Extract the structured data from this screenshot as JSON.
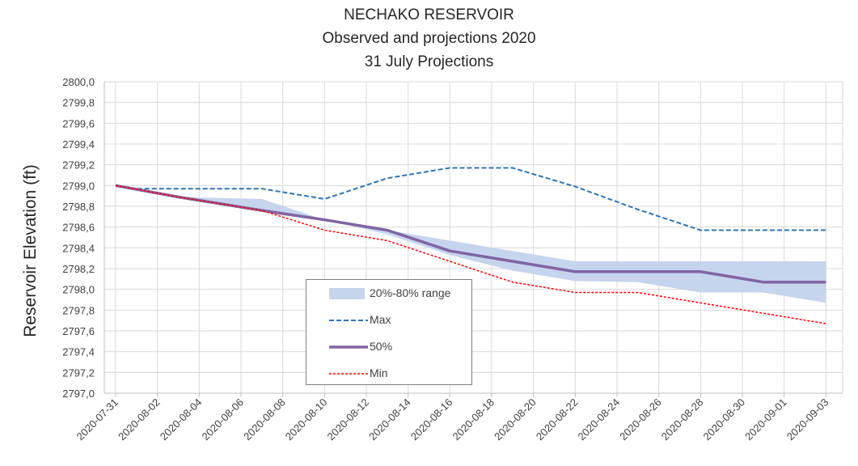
{
  "chart_data": {
    "type": "line",
    "title": [
      "NECHAKO RESERVOIR",
      "Observed and projections 2020",
      "31 July Projections"
    ],
    "ylabel": "Reservoir Elevation (ft)",
    "xlabel": "",
    "ylim": [
      2797.0,
      2800.0
    ],
    "y_ticks": [
      "2797,0",
      "2797,2",
      "2797,4",
      "2797,6",
      "2797,8",
      "2798,0",
      "2798,2",
      "2798,4",
      "2798,6",
      "2798,8",
      "2799,0",
      "2799,2",
      "2799,4",
      "2799,6",
      "2799,8",
      "2800,0"
    ],
    "x_ticks": [
      "2020-07-31",
      "2020-08-02",
      "2020-08-04",
      "2020-08-06",
      "2020-08-08",
      "2020-08-10",
      "2020-08-12",
      "2020-08-14",
      "2020-08-16",
      "2020-08-18",
      "2020-08-20",
      "2020-08-22",
      "2020-08-24",
      "2020-08-26",
      "2020-08-28",
      "2020-08-30",
      "2020-09-01",
      "2020-09-03"
    ],
    "grid": true,
    "legend_position": "center",
    "band": {
      "name": "20%-80% range",
      "color": "#c6d4ed",
      "points": [
        {
          "x": "2020-07-31",
          "low": 2799.0,
          "high": 2799.0
        },
        {
          "x": "2020-08-03",
          "low": 2798.89,
          "high": 2798.89
        },
        {
          "x": "2020-08-07",
          "low": 2798.76,
          "high": 2798.87
        },
        {
          "x": "2020-08-10",
          "low": 2798.67,
          "high": 2798.67
        },
        {
          "x": "2020-08-13",
          "low": 2798.53,
          "high": 2798.57
        },
        {
          "x": "2020-08-16",
          "low": 2798.33,
          "high": 2798.47
        },
        {
          "x": "2020-08-19",
          "low": 2798.18,
          "high": 2798.37
        },
        {
          "x": "2020-08-22",
          "low": 2798.08,
          "high": 2798.27
        },
        {
          "x": "2020-08-25",
          "low": 2798.07,
          "high": 2798.27
        },
        {
          "x": "2020-08-28",
          "low": 2797.97,
          "high": 2798.27
        },
        {
          "x": "2020-08-31",
          "low": 2797.97,
          "high": 2798.27
        },
        {
          "x": "2020-09-03",
          "low": 2797.87,
          "high": 2798.27
        }
      ]
    },
    "series": [
      {
        "name": "Max",
        "color": "#2e75b6",
        "style": "dashed",
        "points": [
          {
            "x": "2020-07-31",
            "y": 2799.0
          },
          {
            "x": "2020-08-01",
            "y": 2798.97
          },
          {
            "x": "2020-08-07",
            "y": 2798.97
          },
          {
            "x": "2020-08-10",
            "y": 2798.87
          },
          {
            "x": "2020-08-13",
            "y": 2799.07
          },
          {
            "x": "2020-08-16",
            "y": 2799.17
          },
          {
            "x": "2020-08-19",
            "y": 2799.17
          },
          {
            "x": "2020-08-22",
            "y": 2798.99
          },
          {
            "x": "2020-08-25",
            "y": 2798.77
          },
          {
            "x": "2020-08-28",
            "y": 2798.57
          },
          {
            "x": "2020-09-03",
            "y": 2798.57
          }
        ]
      },
      {
        "name": "50%",
        "color": "#8064a2",
        "style": "solid",
        "points": [
          {
            "x": "2020-07-31",
            "y": 2799.0
          },
          {
            "x": "2020-08-03",
            "y": 2798.89
          },
          {
            "x": "2020-08-07",
            "y": 2798.76
          },
          {
            "x": "2020-08-10",
            "y": 2798.67
          },
          {
            "x": "2020-08-13",
            "y": 2798.57
          },
          {
            "x": "2020-08-16",
            "y": 2798.37
          },
          {
            "x": "2020-08-19",
            "y": 2798.27
          },
          {
            "x": "2020-08-22",
            "y": 2798.17
          },
          {
            "x": "2020-08-25",
            "y": 2798.17
          },
          {
            "x": "2020-08-28",
            "y": 2798.17
          },
          {
            "x": "2020-08-31",
            "y": 2798.07
          },
          {
            "x": "2020-09-03",
            "y": 2798.07
          }
        ]
      },
      {
        "name": "Min",
        "color": "#ff0000",
        "style": "dotted",
        "points": [
          {
            "x": "2020-07-31",
            "y": 2799.0
          },
          {
            "x": "2020-08-03",
            "y": 2798.89
          },
          {
            "x": "2020-08-07",
            "y": 2798.76
          },
          {
            "x": "2020-08-10",
            "y": 2798.57
          },
          {
            "x": "2020-08-13",
            "y": 2798.47
          },
          {
            "x": "2020-08-16",
            "y": 2798.27
          },
          {
            "x": "2020-08-19",
            "y": 2798.07
          },
          {
            "x": "2020-08-22",
            "y": 2797.97
          },
          {
            "x": "2020-08-25",
            "y": 2797.97
          },
          {
            "x": "2020-08-28",
            "y": 2797.87
          },
          {
            "x": "2020-08-31",
            "y": 2797.77
          },
          {
            "x": "2020-09-03",
            "y": 2797.67
          }
        ]
      }
    ],
    "legend": [
      "20%-80% range",
      "Max",
      "50%",
      "Min"
    ]
  }
}
